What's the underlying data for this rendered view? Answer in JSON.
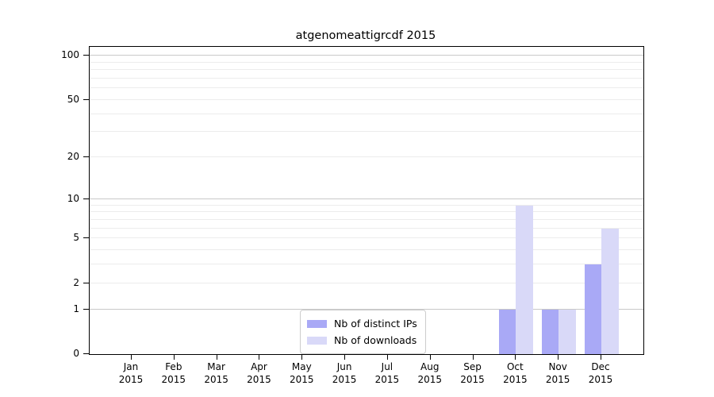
{
  "title": "atgenomeattigrcdf 2015",
  "chart_data": {
    "type": "bar",
    "title": "atgenomeattigrcdf 2015",
    "scale": "log1p",
    "categories": [
      "Jan",
      "Feb",
      "Mar",
      "Apr",
      "May",
      "Jun",
      "Jul",
      "Aug",
      "Sep",
      "Oct",
      "Nov",
      "Dec"
    ],
    "year": "2015",
    "series": [
      {
        "name": "Nb of distinct IPs",
        "color": "#a9a9f6",
        "values": [
          0,
          0,
          0,
          0,
          0,
          0,
          0,
          0,
          0,
          1,
          1,
          3
        ]
      },
      {
        "name": "Nb of downloads",
        "color": "#d9d9f8",
        "values": [
          0,
          0,
          0,
          0,
          0,
          0,
          0,
          0,
          0,
          9,
          1,
          6
        ]
      }
    ],
    "yticks": [
      0,
      1,
      2,
      5,
      10,
      20,
      50,
      100
    ],
    "major_gridlines": [
      1,
      10,
      100
    ],
    "minor_gridlines": [
      2,
      3,
      4,
      5,
      6,
      7,
      8,
      9,
      20,
      30,
      40,
      50,
      60,
      70,
      80,
      90
    ],
    "ylim": [
      0,
      115
    ],
    "xlabel": "",
    "ylabel": "",
    "grid": true,
    "legend_position": "bottom-center"
  },
  "colors": {
    "major_grid": "#c9c9c9",
    "minor_grid": "#ececec",
    "axis": "#000000",
    "background": "#ffffff"
  },
  "legend": {
    "items": [
      {
        "label": "Nb of distinct IPs"
      },
      {
        "label": "Nb of downloads"
      }
    ]
  }
}
